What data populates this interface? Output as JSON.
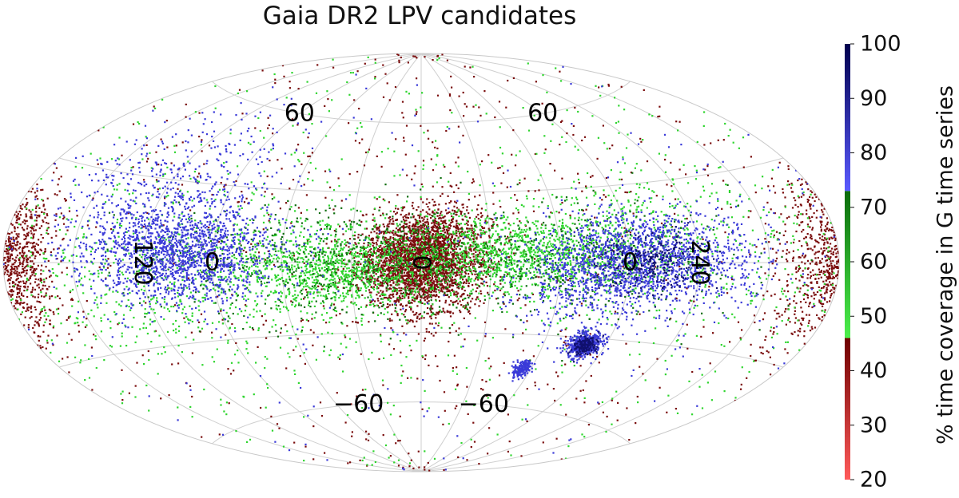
{
  "chart_data": {
    "type": "scatter",
    "title": "Gaia DR2 LPV candidates",
    "projection": "Aitoff",
    "grid": true,
    "grid_labels": [
      {
        "text": "60",
        "lon": 90,
        "lat": 60
      },
      {
        "text": "60",
        "lon": -90,
        "lat": 60
      },
      {
        "text": "120",
        "lon": 120,
        "lat": 0,
        "rotate": 90
      },
      {
        "text": "0",
        "lon": 90,
        "lat": 0
      },
      {
        "text": "0",
        "lon": 0,
        "lat": 0,
        "rotate": 90
      },
      {
        "text": "0",
        "lon": -90,
        "lat": 0
      },
      {
        "text": "240",
        "lon": -120,
        "lat": 0,
        "rotate": 90
      },
      {
        "text": "−60",
        "lon": 45,
        "lat": -60
      },
      {
        "text": "−60",
        "lon": -45,
        "lat": -60
      }
    ],
    "colorbar": {
      "label": "% time coverage in G time series",
      "ticks": [
        20,
        30,
        40,
        50,
        60,
        70,
        80,
        90,
        100
      ],
      "range": [
        20,
        100
      ],
      "segments": [
        {
          "from": 20,
          "to": 46,
          "color_low": "#ff5a5a",
          "color_high": "#6e0000"
        },
        {
          "from": 46,
          "to": 73,
          "color_low": "#4cef4c",
          "color_high": "#0b6b0b"
        },
        {
          "from": 73,
          "to": 100,
          "color_low": "#5a5aff",
          "color_high": "#00004e"
        }
      ]
    },
    "series": [
      {
        "color": "#7a0d0d",
        "regions": [
          {
            "lon": 0,
            "lat": 0,
            "sigma_lon": 13,
            "sigma_lat": 10,
            "count": 2600,
            "note": "bulge"
          },
          {
            "lon": -10,
            "lat": 12,
            "sigma_lon": 12,
            "sigma_lat": 8,
            "count": 300
          },
          {
            "lon": 175,
            "lat": 0,
            "sigma_lon": 8,
            "sigma_lat": 10,
            "count": 700
          },
          {
            "lon": -172,
            "lat": 0,
            "sigma_lon": 10,
            "sigma_lat": 12,
            "count": 400
          },
          {
            "lon": 0,
            "lat": 0,
            "sigma_lon": 120,
            "sigma_lat": 50,
            "count": 900,
            "note": "halo"
          }
        ]
      },
      {
        "color": "#2fd52f",
        "regions": [
          {
            "lon": 35,
            "lat": -3,
            "sigma_lon": 22,
            "sigma_lat": 8,
            "count": 900
          },
          {
            "lon": -40,
            "lat": 3,
            "sigma_lon": 28,
            "sigma_lat": 8,
            "count": 1100
          },
          {
            "lon": -90,
            "lat": 8,
            "sigma_lon": 30,
            "sigma_lat": 12,
            "count": 500
          },
          {
            "lon": 100,
            "lat": -5,
            "sigma_lon": 40,
            "sigma_lat": 15,
            "count": 600
          },
          {
            "lon": 0,
            "lat": 0,
            "sigma_lon": 160,
            "sigma_lat": 35,
            "count": 900,
            "note": "halo"
          }
        ]
      },
      {
        "color": "#0f6e0f",
        "regions": [
          {
            "lon": 40,
            "lat": 0,
            "sigma_lon": 40,
            "sigma_lat": 12,
            "count": 500
          },
          {
            "lon": -60,
            "lat": 0,
            "sigma_lon": 40,
            "sigma_lat": 12,
            "count": 400
          }
        ]
      },
      {
        "color": "#3a3ad8",
        "regions": [
          {
            "lon": 105,
            "lat": 3,
            "sigma_lon": 20,
            "sigma_lat": 9,
            "count": 1500
          },
          {
            "lon": -100,
            "lat": 1,
            "sigma_lon": 22,
            "sigma_lat": 9,
            "count": 1500
          },
          {
            "lon": 120,
            "lat": 25,
            "sigma_lon": 25,
            "sigma_lat": 15,
            "count": 500
          },
          {
            "lon": -70,
            "lat": -10,
            "sigma_lon": 15,
            "sigma_lat": 10,
            "count": 300
          },
          {
            "lon": -80,
            "lat": -33,
            "sigma_lon": 4,
            "sigma_lat": 2.5,
            "count": 500,
            "note": "LMC"
          },
          {
            "lon": -55,
            "lat": -44,
            "sigma_lon": 2.5,
            "sigma_lat": 1.7,
            "count": 180,
            "note": "SMC"
          },
          {
            "lon": 0,
            "lat": 0,
            "sigma_lon": 130,
            "sigma_lat": 40,
            "count": 250,
            "note": "halo"
          }
        ]
      },
      {
        "color": "#10106e",
        "regions": [
          {
            "lon": -100,
            "lat": 0,
            "sigma_lon": 12,
            "sigma_lat": 5,
            "count": 250
          },
          {
            "lon": -80,
            "lat": -33,
            "sigma_lon": 3,
            "sigma_lat": 2,
            "count": 150
          }
        ]
      }
    ]
  }
}
